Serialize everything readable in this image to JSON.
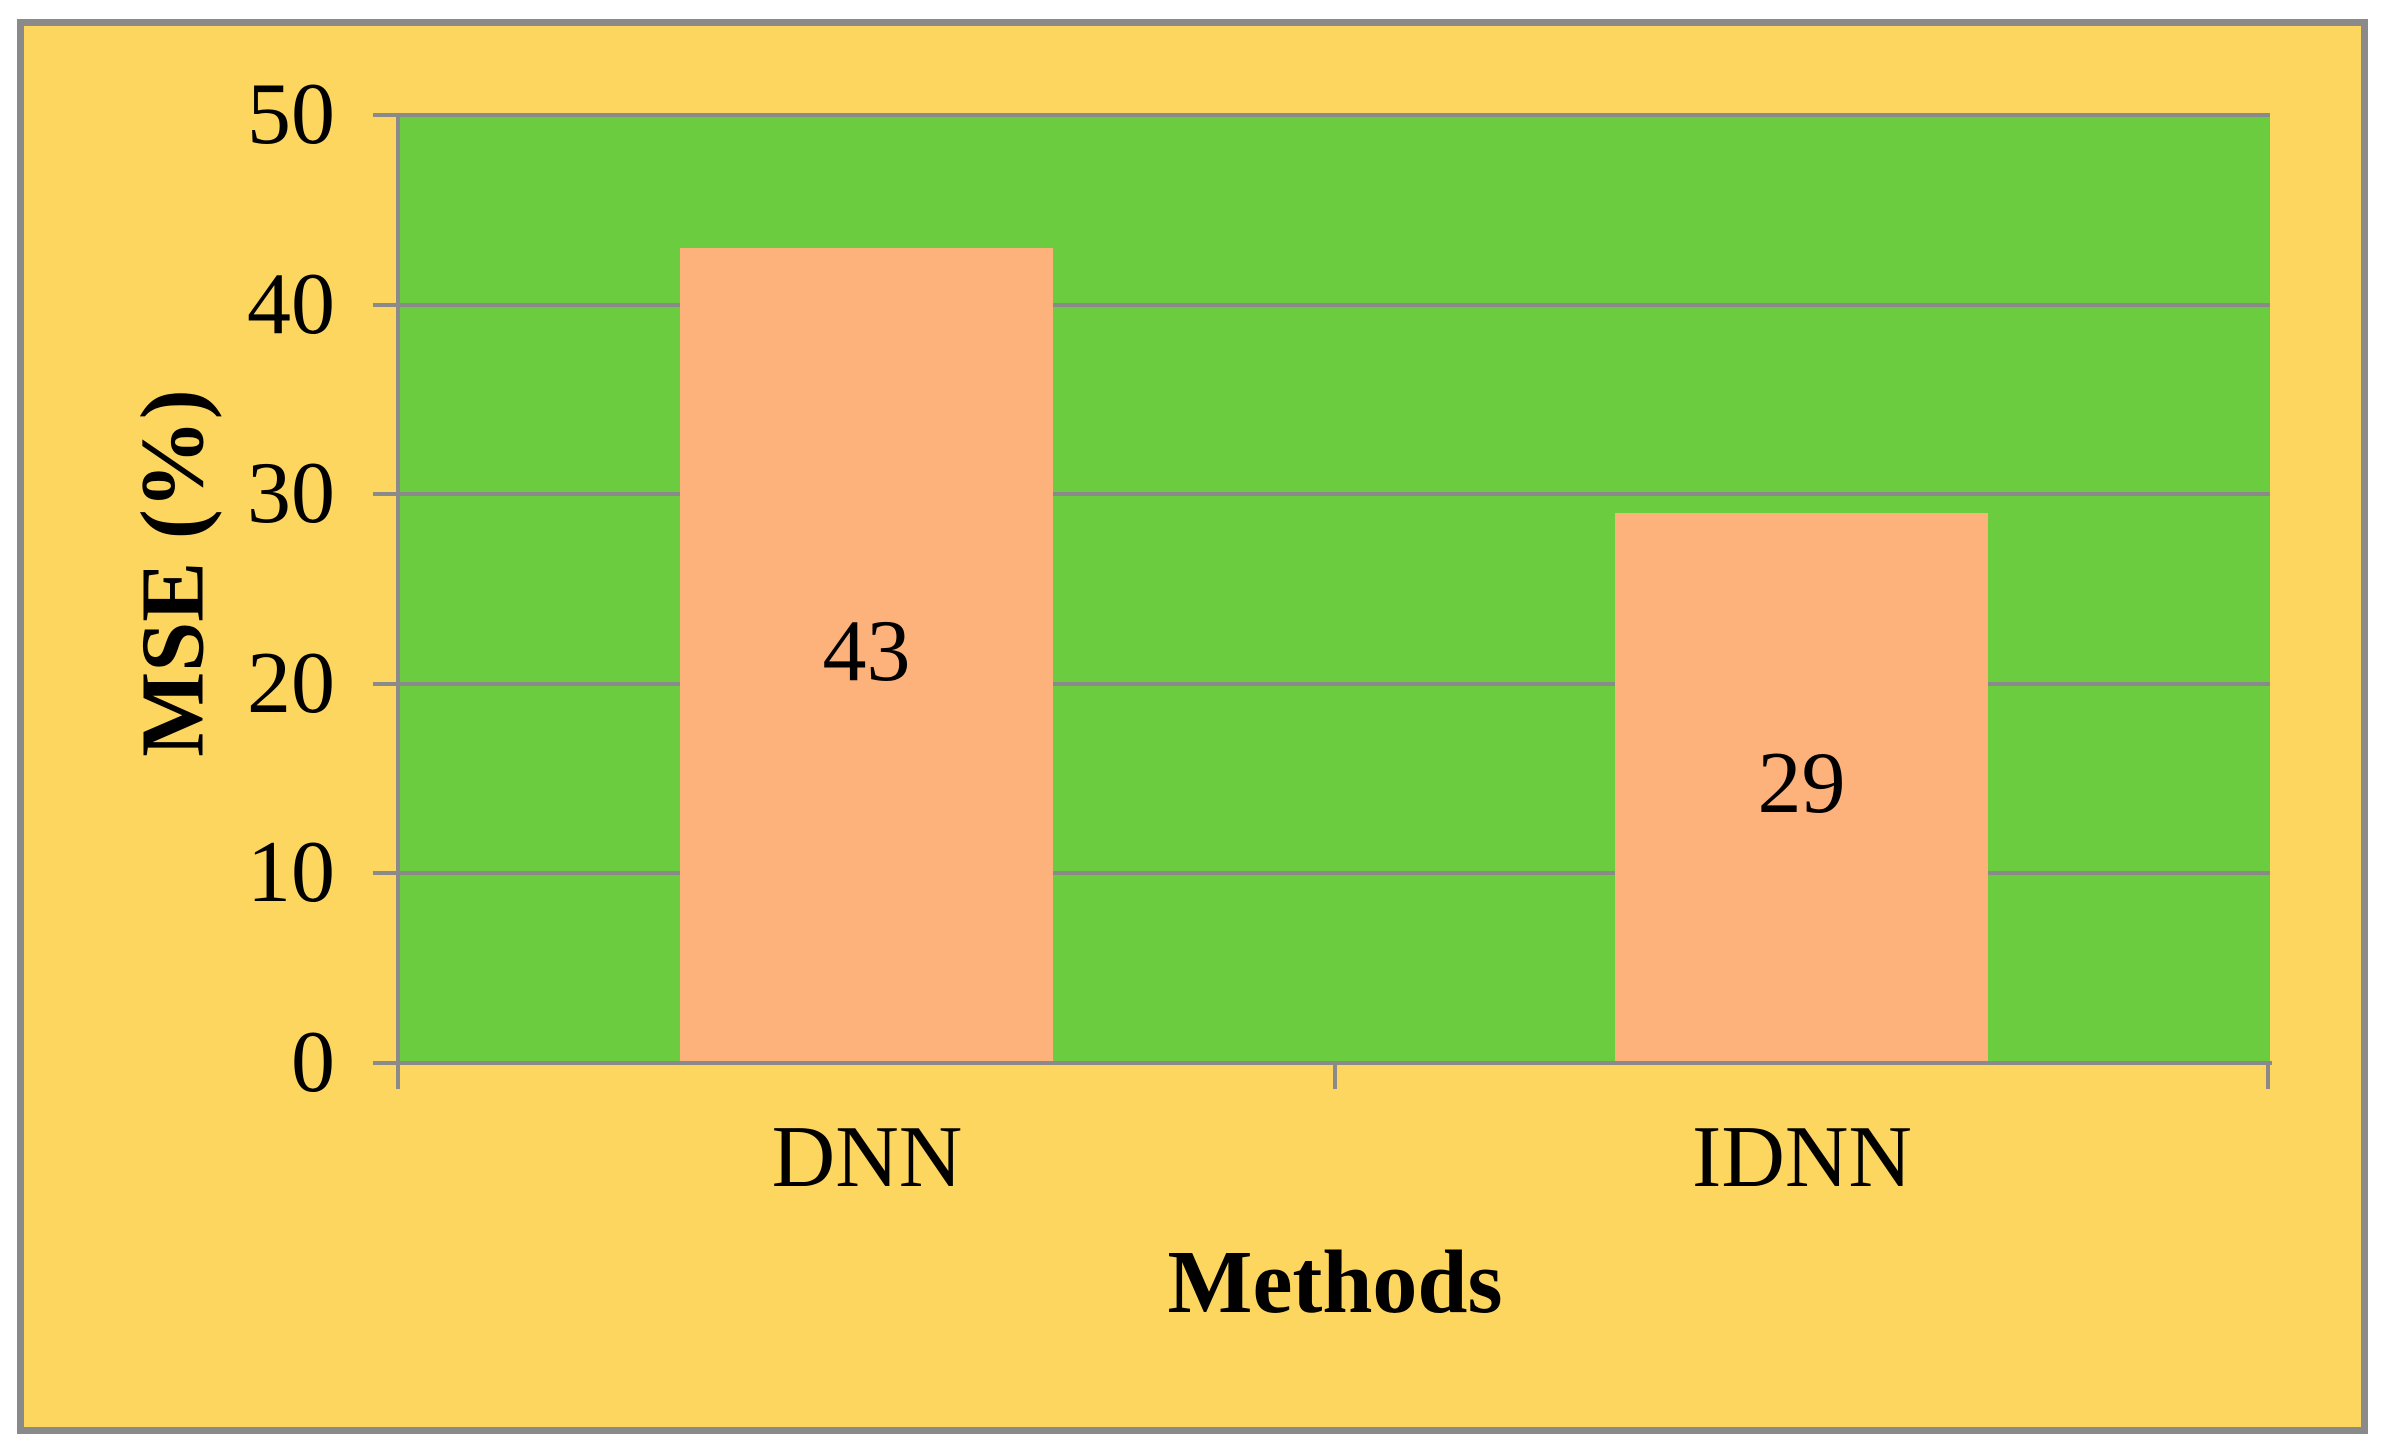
{
  "chart_data": {
    "type": "bar",
    "title": "",
    "categories": [
      "DNN",
      "IDNN"
    ],
    "values": [
      43,
      29
    ],
    "bar_labels": [
      "43",
      "29"
    ],
    "xlabel": "Methods",
    "ylabel": "MSE (%)",
    "ylim": [
      0,
      50
    ],
    "ytick_step": 10,
    "yticks": [
      "50",
      "40",
      "30",
      "20",
      "10",
      "0"
    ],
    "grid": "horizontal",
    "legend": "none",
    "layout": {
      "plot_background_shown": true,
      "bars_cover_gridlines": true,
      "value_label_position": "center-inside"
    },
    "colors": {
      "page_background": "#ffffff",
      "chart_background": "#fdd65f",
      "plot_background": "#6ccc40",
      "bar_fill": "#fdb27c",
      "axis_and_grid": "#8a8a8a",
      "text": "#000000"
    }
  }
}
